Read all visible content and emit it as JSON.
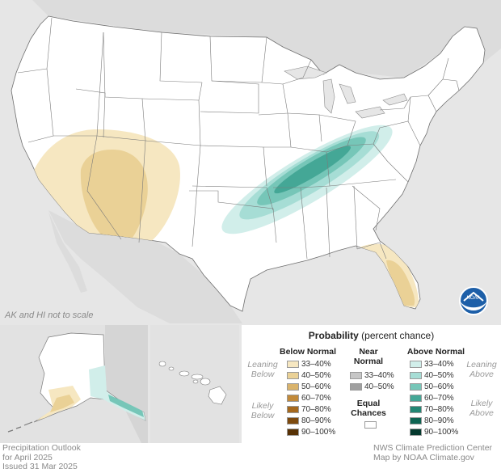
{
  "map": {
    "note": "AK and HI not to scale",
    "logo_text": "NOAA"
  },
  "legend": {
    "title_bold": "Probability",
    "title_rest": " (percent chance)",
    "below_head": "Below Normal",
    "near_head_1": "Near",
    "near_head_2": "Normal",
    "above_head": "Above Normal",
    "leaning_below_1": "Leaning",
    "leaning_below_2": "Below",
    "likely_below_1": "Likely",
    "likely_below_2": "Below",
    "leaning_above_1": "Leaning",
    "leaning_above_2": "Above",
    "likely_above_1": "Likely",
    "likely_above_2": "Above",
    "equal_1": "Equal",
    "equal_2": "Chances",
    "below": [
      {
        "label": "33–40%",
        "color": "#f6e7c1"
      },
      {
        "label": "40–50%",
        "color": "#ead196"
      },
      {
        "label": "50–60%",
        "color": "#d9b36c"
      },
      {
        "label": "60–70%",
        "color": "#c28a3a"
      },
      {
        "label": "70–80%",
        "color": "#a6691d"
      },
      {
        "label": "80–90%",
        "color": "#7d4a0e"
      },
      {
        "label": "90–100%",
        "color": "#573105"
      }
    ],
    "near": [
      {
        "label": "33–40%",
        "color": "#c6c6c6"
      },
      {
        "label": "40–50%",
        "color": "#a0a0a0"
      }
    ],
    "above": [
      {
        "label": "33–40%",
        "color": "#d1eeea"
      },
      {
        "label": "40–50%",
        "color": "#a6ddd5"
      },
      {
        "label": "50–60%",
        "color": "#76c6b8"
      },
      {
        "label": "60–70%",
        "color": "#44a796"
      },
      {
        "label": "70–80%",
        "color": "#228774"
      },
      {
        "label": "80–90%",
        "color": "#0e6452"
      },
      {
        "label": "90–100%",
        "color": "#04392e"
      }
    ]
  },
  "footer": {
    "left_1": "Precipitation Outlook",
    "left_2": "for April 2025",
    "left_3": "Issued 31 Mar 2025",
    "right_1": "NWS Climate Prediction Center",
    "right_2": "Map by NOAA Climate.gov"
  }
}
